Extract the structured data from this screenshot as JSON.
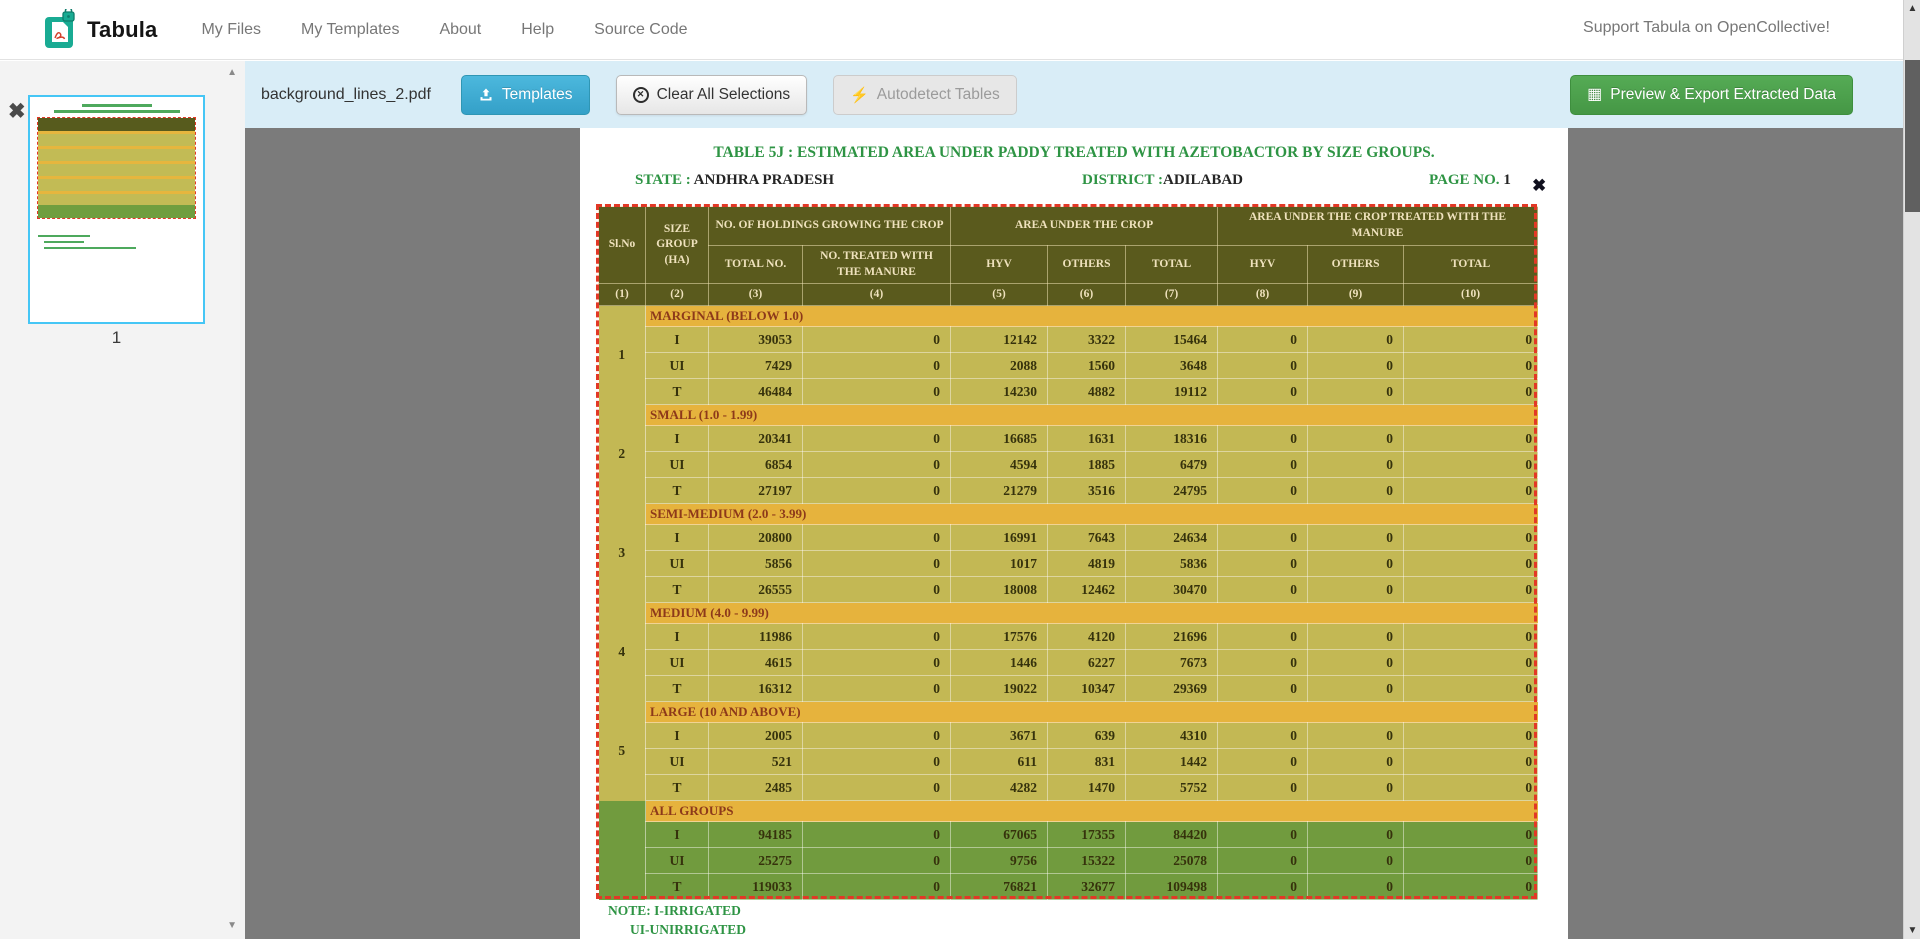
{
  "navbar": {
    "brand": "Tabula",
    "links": [
      "My Files",
      "My Templates",
      "About",
      "Help",
      "Source Code"
    ],
    "support_text": "Support Tabula on OpenCollective!"
  },
  "toolbar": {
    "filename": "background_lines_2.pdf",
    "templates_label": "Templates",
    "clear_label": "Clear All Selections",
    "autodetect_label": "Autodetect Tables",
    "export_label": "Preview & Export Extracted Data"
  },
  "sidebar": {
    "page_number": "1"
  },
  "document": {
    "title": "TABLE 5J : ESTIMATED AREA UNDER PADDY  TREATED WITH AZETOBACTOR BY SIZE GROUPS.",
    "state_label": "STATE :",
    "state_value": "ANDHRA PRADESH",
    "district_label": "DISTRICT :",
    "district_value": "ADILABAD",
    "page_label": "PAGE NO.",
    "page_value": "1",
    "notes": [
      "NOTE: I-IRRIGATED",
      "UI-UNIRRIGATED"
    ],
    "table": {
      "header": {
        "slno": "Sl.No",
        "size_group": "SIZE GROUP (HA)",
        "holdings": "NO. OF HOLDINGS GROWING THE CROP",
        "area": "AREA UNDER THE CROP",
        "area_treated": "AREA UNDER THE CROP TREATED WITH THE MANURE",
        "sub": [
          "TOTAL NO.",
          "NO. TREATED WITH THE MANURE",
          "HYV",
          "OTHERS",
          "TOTAL",
          "HYV",
          "OTHERS",
          "TOTAL"
        ],
        "col_nums": [
          "(1)",
          "(2)",
          "(3)",
          "(4)",
          "(5)",
          "(6)",
          "(7)",
          "(8)",
          "(9)",
          "(10)"
        ]
      },
      "groups": [
        {
          "slno": "1",
          "label": "MARGINAL (BELOW 1.0)",
          "green": false,
          "rows": [
            [
              "I",
              "39053",
              "0",
              "12142",
              "3322",
              "15464",
              "0",
              "0",
              "0"
            ],
            [
              "UI",
              "7429",
              "0",
              "2088",
              "1560",
              "3648",
              "0",
              "0",
              "0"
            ],
            [
              "T",
              "46484",
              "0",
              "14230",
              "4882",
              "19112",
              "0",
              "0",
              "0"
            ]
          ]
        },
        {
          "slno": "2",
          "label": "SMALL (1.0 - 1.99)",
          "green": false,
          "rows": [
            [
              "I",
              "20341",
              "0",
              "16685",
              "1631",
              "18316",
              "0",
              "0",
              "0"
            ],
            [
              "UI",
              "6854",
              "0",
              "4594",
              "1885",
              "6479",
              "0",
              "0",
              "0"
            ],
            [
              "T",
              "27197",
              "0",
              "21279",
              "3516",
              "24795",
              "0",
              "0",
              "0"
            ]
          ]
        },
        {
          "slno": "3",
          "label": "SEMI-MEDIUM (2.0 - 3.99)",
          "green": false,
          "rows": [
            [
              "I",
              "20800",
              "0",
              "16991",
              "7643",
              "24634",
              "0",
              "0",
              "0"
            ],
            [
              "UI",
              "5856",
              "0",
              "1017",
              "4819",
              "5836",
              "0",
              "0",
              "0"
            ],
            [
              "T",
              "26555",
              "0",
              "18008",
              "12462",
              "30470",
              "0",
              "0",
              "0"
            ]
          ]
        },
        {
          "slno": "4",
          "label": "MEDIUM (4.0 - 9.99)",
          "green": false,
          "rows": [
            [
              "I",
              "11986",
              "0",
              "17576",
              "4120",
              "21696",
              "0",
              "0",
              "0"
            ],
            [
              "UI",
              "4615",
              "0",
              "1446",
              "6227",
              "7673",
              "0",
              "0",
              "0"
            ],
            [
              "T",
              "16312",
              "0",
              "19022",
              "10347",
              "29369",
              "0",
              "0",
              "0"
            ]
          ]
        },
        {
          "slno": "5",
          "label": "LARGE (10 AND ABOVE)",
          "green": false,
          "rows": [
            [
              "I",
              "2005",
              "0",
              "3671",
              "639",
              "4310",
              "0",
              "0",
              "0"
            ],
            [
              "UI",
              "521",
              "0",
              "611",
              "831",
              "1442",
              "0",
              "0",
              "0"
            ],
            [
              "T",
              "2485",
              "0",
              "4282",
              "1470",
              "5752",
              "0",
              "0",
              "0"
            ]
          ]
        },
        {
          "slno": "",
          "label": "ALL GROUPS",
          "green": true,
          "rows": [
            [
              "I",
              "94185",
              "0",
              "67065",
              "17355",
              "84420",
              "0",
              "0",
              "0"
            ],
            [
              "UI",
              "25275",
              "0",
              "9756",
              "15322",
              "25078",
              "0",
              "0",
              "0"
            ],
            [
              "T",
              "119033",
              "0",
              "76821",
              "32677",
              "109498",
              "0",
              "0",
              "0"
            ]
          ]
        }
      ]
    }
  },
  "colors": {
    "toolbar_bg": "#d9edf7",
    "header_olive": "#575b1d",
    "band_orange": "#e6b63e",
    "row_yellow": "#c2bb55",
    "group_green": "#6f9e3f",
    "text_green": "#2e9444",
    "group_label_maroon": "#8b3a1a",
    "selection_red": "#e23826",
    "thumb_border_blue": "#45c6f5",
    "templates_btn_blue": "#3aaed6",
    "export_btn_green": "#4da64d"
  }
}
